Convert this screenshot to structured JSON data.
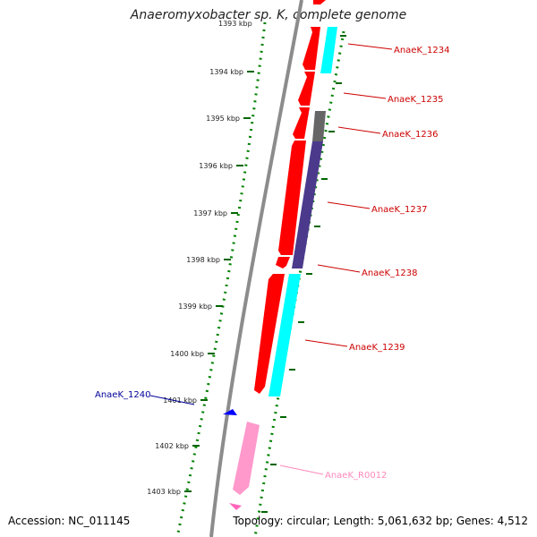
{
  "title": "Anaeromyxobacter sp. K, complete genome",
  "accession_label": "Accession: NC_011145",
  "topology_label": "Topology: circular; Length: 5,061,632 bp; Genes: 4,512",
  "colors": {
    "red_gene": "#ff0000",
    "cyan_gene": "#00ffff",
    "purple_gene": "#4b3a8c",
    "gray_gene": "#666666",
    "pink_gene": "#ff99cc",
    "blue_gene": "#0000ff",
    "tick_green": "#006600",
    "backbone": "#888888",
    "label_red": "#cc0000",
    "label_blue": "#000099",
    "label_pink": "#ff88bb"
  },
  "ruler": {
    "partial_top_label": "1393 kbp",
    "ticks": [
      "1394 kbp",
      "1395 kbp",
      "1396 kbp",
      "1397 kbp",
      "1398 kbp",
      "1399 kbp",
      "1400 kbp",
      "1401 kbp",
      "1402 kbp",
      "1403 kbp"
    ]
  },
  "gene_labels": [
    {
      "text": "AnaeK_1234",
      "color": "label_red"
    },
    {
      "text": "AnaeK_1235",
      "color": "label_red"
    },
    {
      "text": "AnaeK_1236",
      "color": "label_red"
    },
    {
      "text": "AnaeK_1237",
      "color": "label_red"
    },
    {
      "text": "AnaeK_1238",
      "color": "label_red"
    },
    {
      "text": "AnaeK_1239",
      "color": "label_red"
    },
    {
      "text": "AnaeK_1240",
      "color": "label_blue"
    },
    {
      "text": "AnaeK_R0012",
      "color": "label_pink"
    }
  ]
}
